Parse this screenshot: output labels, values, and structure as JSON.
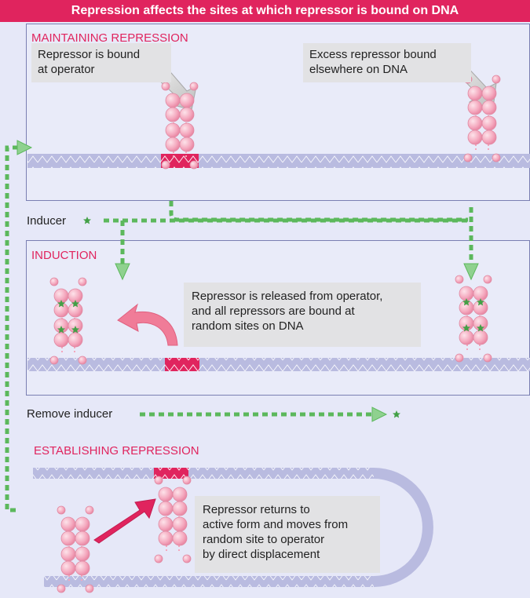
{
  "title": "Repression affects the sites at which repressor is bound on DNA",
  "sections": {
    "maintaining": {
      "heading": "MAINTAINING REPRESSION",
      "callout_left": [
        "Repressor is bound",
        "at operator"
      ],
      "callout_right": [
        "Excess repressor bound",
        "elsewhere on DNA"
      ]
    },
    "inducer_label": "Inducer",
    "induction": {
      "heading": "INDUCTION",
      "callout": [
        "Repressor is released from operator,",
        "and all repressors are bound at",
        "random sites on DNA"
      ]
    },
    "remove_inducer_label": "Remove inducer",
    "establishing": {
      "heading": "ESTABLISHING REPRESSION",
      "callout": [
        "Repressor returns to",
        "active form and moves from",
        "random site to operator",
        "by direct displacement"
      ]
    }
  },
  "colors": {
    "title_bg": "#e0245e",
    "heading": "#e0245e",
    "dna": "#b9bbe0",
    "operator": "#e0245e",
    "repressor": "#f4a7bd",
    "inducer": "#4caf50",
    "flow_arrow": "#5cb85c",
    "callout_bg": "#e2e2e4"
  }
}
